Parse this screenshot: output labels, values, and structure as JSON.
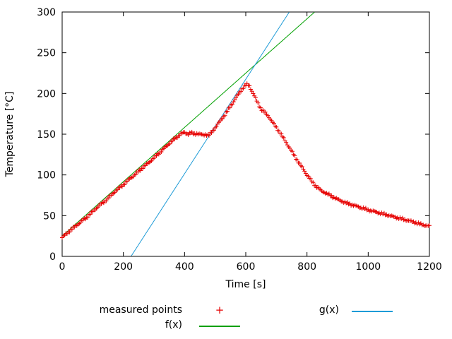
{
  "chart_data": {
    "type": "scatter",
    "title": "",
    "xlabel": "Time [s]",
    "ylabel": "Temperature [°C]",
    "xlim": [
      0,
      1200
    ],
    "ylim": [
      0,
      300
    ],
    "xticks": [
      0,
      200,
      400,
      600,
      800,
      1000,
      1200
    ],
    "yticks": [
      0,
      50,
      100,
      150,
      200,
      250,
      300
    ],
    "grid": false,
    "legend_position": "below-plot",
    "series": [
      {
        "name": "measured points",
        "type": "points",
        "marker": "plus",
        "marker_glyph": "+",
        "color": "#e60000",
        "sample_dt": 4,
        "jitter": 1.0,
        "anchors": [
          [
            0,
            23
          ],
          [
            20,
            30
          ],
          [
            40,
            36
          ],
          [
            60,
            42
          ],
          [
            80,
            48
          ],
          [
            100,
            55
          ],
          [
            120,
            62
          ],
          [
            140,
            68
          ],
          [
            160,
            75
          ],
          [
            180,
            82
          ],
          [
            200,
            88
          ],
          [
            220,
            95
          ],
          [
            240,
            101
          ],
          [
            260,
            108
          ],
          [
            280,
            114
          ],
          [
            300,
            121
          ],
          [
            320,
            128
          ],
          [
            340,
            135
          ],
          [
            360,
            142
          ],
          [
            380,
            148
          ],
          [
            390,
            151
          ],
          [
            400,
            152
          ],
          [
            410,
            150
          ],
          [
            420,
            152
          ],
          [
            430,
            150
          ],
          [
            440,
            151
          ],
          [
            450,
            150
          ],
          [
            460,
            149
          ],
          [
            470,
            150
          ],
          [
            478,
            148
          ],
          [
            490,
            153
          ],
          [
            510,
            163
          ],
          [
            530,
            173
          ],
          [
            550,
            184
          ],
          [
            570,
            196
          ],
          [
            585,
            204
          ],
          [
            595,
            209
          ],
          [
            605,
            211
          ],
          [
            612,
            209
          ],
          [
            620,
            203
          ],
          [
            632,
            194
          ],
          [
            642,
            186
          ],
          [
            650,
            181
          ],
          [
            658,
            178
          ],
          [
            666,
            175
          ],
          [
            674,
            172
          ],
          [
            685,
            166
          ],
          [
            700,
            158
          ],
          [
            715,
            150
          ],
          [
            730,
            141
          ],
          [
            745,
            132
          ],
          [
            760,
            123
          ],
          [
            775,
            114
          ],
          [
            790,
            106
          ],
          [
            800,
            100
          ],
          [
            810,
            95
          ],
          [
            820,
            90
          ],
          [
            830,
            86
          ],
          [
            845,
            81
          ],
          [
            860,
            78
          ],
          [
            880,
            74
          ],
          [
            900,
            70
          ],
          [
            925,
            66
          ],
          [
            950,
            63
          ],
          [
            975,
            60
          ],
          [
            1000,
            57
          ],
          [
            1030,
            54
          ],
          [
            1060,
            51
          ],
          [
            1090,
            48
          ],
          [
            1120,
            45
          ],
          [
            1150,
            42
          ],
          [
            1175,
            39
          ],
          [
            1200,
            37
          ]
        ]
      },
      {
        "name": "f(x)",
        "type": "line",
        "color": "#00a000",
        "slope": 0.3333,
        "intercept": 25
      },
      {
        "name": "g(x)",
        "type": "line",
        "color": "#1e9bd7",
        "slope": 0.58,
        "intercept": -130.5
      }
    ]
  }
}
